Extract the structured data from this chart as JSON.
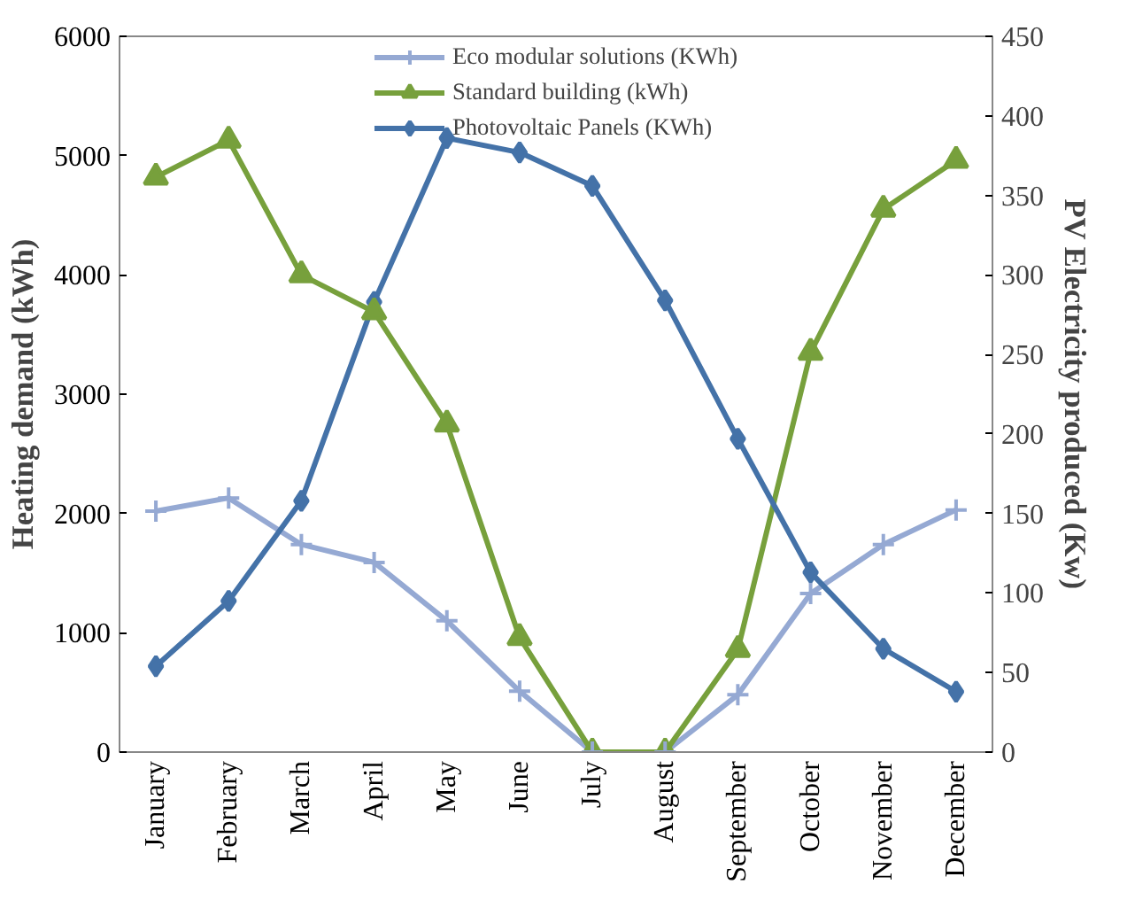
{
  "chart_data": {
    "type": "line",
    "categories": [
      "January",
      "February",
      "March",
      "April",
      "May",
      "June",
      "July",
      "August",
      "September",
      "October",
      "November",
      "December"
    ],
    "ylabel": "Heating demand (kWh)",
    "y2label": "PV Electricity produced (Kw)",
    "ylim": [
      0,
      6000
    ],
    "yticks": [
      0,
      1000,
      2000,
      3000,
      4000,
      5000,
      6000
    ],
    "y2lim": [
      0,
      450
    ],
    "y2ticks": [
      0,
      50,
      100,
      150,
      200,
      250,
      300,
      350,
      400,
      450
    ],
    "grid": false,
    "legend": "top",
    "series": [
      {
        "name": "Eco modular solutions (KWh)",
        "color": "#95a9d3",
        "marker": "cross",
        "values": [
          2020,
          2130,
          1740,
          1590,
          1100,
          510,
          0,
          0,
          480,
          1330,
          1740,
          2030
        ]
      },
      {
        "name": "Standard building (kWh)",
        "color": "#77a03c",
        "marker": "triangle",
        "values": [
          4820,
          5130,
          4000,
          3690,
          2750,
          960,
          0,
          0,
          860,
          3350,
          4550,
          4960
        ]
      },
      {
        "name": "Photovoltaic Panels (KWh)",
        "color": "#4472a8",
        "marker": "diamond",
        "axis": "y2",
        "values": [
          54,
          95,
          158,
          283,
          386,
          377,
          356,
          284,
          197,
          113,
          65,
          38
        ]
      }
    ]
  }
}
